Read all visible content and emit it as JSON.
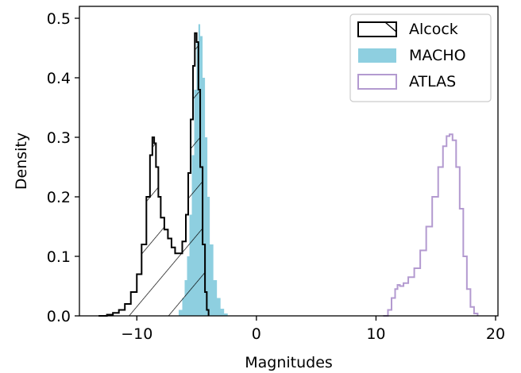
{
  "chart_data": {
    "type": "histogram",
    "xlabel": "Magnitudes",
    "ylabel": "Density",
    "xlim": [
      -14.8,
      20.2
    ],
    "ylim": [
      0,
      0.52
    ],
    "xticks": [
      -10,
      0,
      10,
      20
    ],
    "xtick_labels": [
      "−10",
      "0",
      "10",
      "20"
    ],
    "yticks": [
      0.0,
      0.1,
      0.2,
      0.3,
      0.4,
      0.5
    ],
    "ytick_labels": [
      "0.0",
      "0.1",
      "0.2",
      "0.3",
      "0.4",
      "0.5"
    ],
    "grid": false,
    "legend_position": "top-right",
    "series": [
      {
        "name": "Alcock",
        "style": "step-outline-hatched",
        "color": "#000000",
        "x": [
          -13.2,
          -12.5,
          -12.0,
          -11.5,
          -11.0,
          -10.5,
          -10.0,
          -9.6,
          -9.2,
          -8.9,
          -8.7,
          -8.55,
          -8.4,
          -8.2,
          -8.0,
          -7.7,
          -7.4,
          -7.1,
          -6.8,
          -6.5,
          -6.2,
          -5.9,
          -5.7,
          -5.5,
          -5.3,
          -5.15,
          -5.0,
          -4.85,
          -4.7,
          -4.5,
          -4.3,
          -4.15,
          -4.0
        ],
        "y": [
          0.0,
          0.002,
          0.005,
          0.01,
          0.02,
          0.04,
          0.07,
          0.12,
          0.2,
          0.27,
          0.3,
          0.29,
          0.25,
          0.2,
          0.165,
          0.145,
          0.13,
          0.115,
          0.105,
          0.105,
          0.125,
          0.17,
          0.24,
          0.33,
          0.42,
          0.475,
          0.46,
          0.38,
          0.25,
          0.12,
          0.04,
          0.01,
          0.0
        ]
      },
      {
        "name": "MACHO",
        "style": "step-filled",
        "color": "#8ecfe0",
        "x": [
          -7.0,
          -6.5,
          -6.2,
          -6.0,
          -5.8,
          -5.6,
          -5.4,
          -5.2,
          -5.0,
          -4.85,
          -4.7,
          -4.5,
          -4.3,
          -4.1,
          -3.9,
          -3.6,
          -3.3,
          -3.0,
          -2.7,
          -2.4
        ],
        "y": [
          0.0,
          0.01,
          0.03,
          0.06,
          0.1,
          0.17,
          0.27,
          0.38,
          0.46,
          0.49,
          0.47,
          0.4,
          0.3,
          0.2,
          0.12,
          0.06,
          0.03,
          0.012,
          0.004,
          0.0
        ]
      },
      {
        "name": "ATLAS",
        "style": "step-outline",
        "color": "#b39ad0",
        "x": [
          10.6,
          11.0,
          11.3,
          11.6,
          11.8,
          12.0,
          12.3,
          12.7,
          13.2,
          13.7,
          14.2,
          14.7,
          15.2,
          15.6,
          15.9,
          16.15,
          16.4,
          16.7,
          17.0,
          17.3,
          17.6,
          17.9,
          18.2,
          18.5
        ],
        "y": [
          0.0,
          0.01,
          0.03,
          0.045,
          0.052,
          0.05,
          0.055,
          0.065,
          0.08,
          0.11,
          0.15,
          0.2,
          0.25,
          0.285,
          0.302,
          0.305,
          0.295,
          0.25,
          0.18,
          0.1,
          0.045,
          0.015,
          0.004,
          0.0
        ]
      }
    ]
  }
}
